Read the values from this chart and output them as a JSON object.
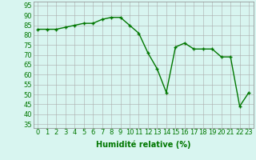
{
  "x": [
    0,
    1,
    2,
    3,
    4,
    5,
    6,
    7,
    8,
    9,
    10,
    11,
    12,
    13,
    14,
    15,
    16,
    17,
    18,
    19,
    20,
    21,
    22,
    23
  ],
  "y": [
    83,
    83,
    83,
    84,
    85,
    86,
    86,
    88,
    89,
    89,
    85,
    81,
    71,
    63,
    51,
    74,
    76,
    73,
    73,
    73,
    69,
    69,
    44,
    51
  ],
  "line_color": "#007700",
  "marker": "+",
  "marker_size": 3.5,
  "bg_color": "#d8f5f0",
  "grid_color": "#aaaaaa",
  "xlabel": "Humidité relative (%)",
  "xlabel_color": "#007700",
  "xlabel_fontsize": 7,
  "yticks": [
    35,
    40,
    45,
    50,
    55,
    60,
    65,
    70,
    75,
    80,
    85,
    90,
    95
  ],
  "xlim": [
    -0.5,
    23.5
  ],
  "ylim": [
    33,
    97
  ],
  "tick_fontsize": 6,
  "tick_color": "#007700",
  "linewidth": 1.0,
  "marker_edge_width": 1.0
}
